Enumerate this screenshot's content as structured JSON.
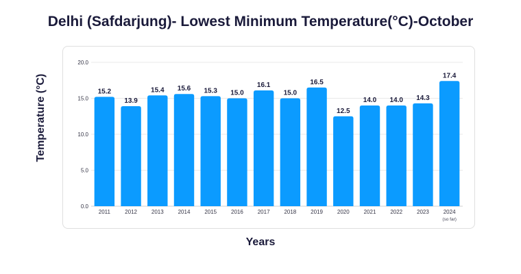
{
  "title": "Delhi (Safdarjung)- Lowest Minimum Temperature(°C)-October",
  "colors": {
    "bar": "#0b9bff",
    "grid": "#e8e8e8",
    "axis": "#cfcfcf"
  },
  "chart_data": {
    "type": "bar",
    "title": "Delhi (Safdarjung)- Lowest Minimum Temperature(°C)-October",
    "xlabel": "Years",
    "ylabel": "Temperature (°C)",
    "categories": [
      "2011",
      "2012",
      "2013",
      "2014",
      "2015",
      "2016",
      "2017",
      "2018",
      "2019",
      "2020",
      "2021",
      "2022",
      "2023",
      "2024"
    ],
    "category_notes": [
      "",
      "",
      "",
      "",
      "",
      "",
      "",
      "",
      "",
      "",
      "",
      "",
      "",
      "(so far)"
    ],
    "values": [
      15.2,
      13.9,
      15.4,
      15.6,
      15.3,
      15.0,
      16.1,
      15.0,
      16.5,
      12.5,
      14.0,
      14.0,
      14.3,
      17.4
    ],
    "data_labels": [
      "15.2",
      "13.9",
      "15.4",
      "15.6",
      "15.3",
      "15.0",
      "16.1",
      "15.0",
      "16.5",
      "12.5",
      "14.0",
      "14.0",
      "14.3",
      "17.4"
    ],
    "ylim": [
      0,
      20
    ],
    "yticks": [
      "0.0",
      "5.0",
      "10.0",
      "15.0",
      "20.0"
    ],
    "ytick_values": [
      0,
      5,
      10,
      15,
      20
    ],
    "grid": true,
    "legend": "none"
  }
}
